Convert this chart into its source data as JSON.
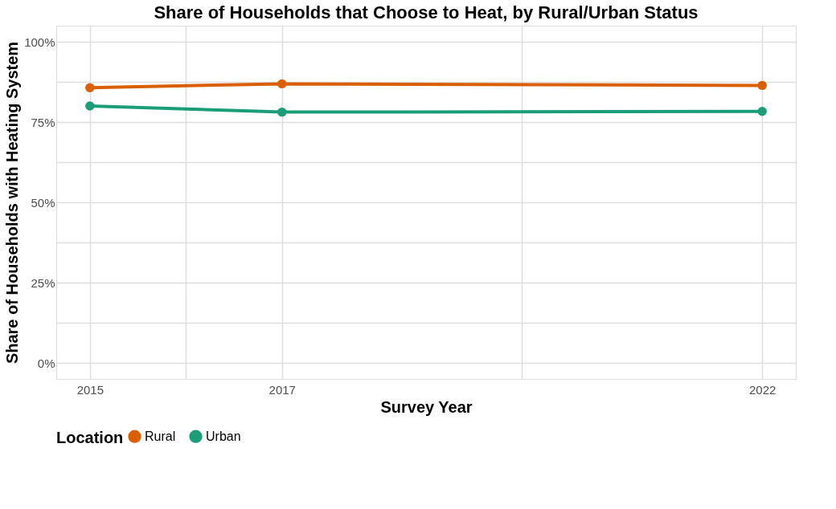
{
  "chart_data": {
    "type": "line",
    "title": "Share of Households that Choose to Heat, by Rural/Urban Status",
    "xlabel": "Survey Year",
    "ylabel": "Share of Households with Heating System",
    "legend_title": "Location",
    "x": [
      2015,
      2017,
      2022
    ],
    "series": [
      {
        "name": "Rural",
        "color": "#d95f02",
        "values": [
          85.7,
          86.9,
          86.4
        ]
      },
      {
        "name": "Urban",
        "color": "#1b9e77",
        "values": [
          80.0,
          78.1,
          78.3
        ]
      }
    ],
    "xlim": [
      2014.65,
      2022.35
    ],
    "xticks": [
      2015,
      {
        "value": 2016,
        "label": null
      },
      2017,
      {
        "value": 2019.5,
        "label": null
      },
      2022
    ],
    "ylim": [
      -5,
      105
    ],
    "yticks": [
      {
        "value": 0,
        "label": "0%"
      },
      {
        "value": 12.5,
        "label": null
      },
      {
        "value": 25,
        "label": "25%"
      },
      {
        "value": 37.5,
        "label": null
      },
      {
        "value": 50,
        "label": "50%"
      },
      {
        "value": 62.5,
        "label": null
      },
      {
        "value": 75,
        "label": "75%"
      },
      {
        "value": 87.5,
        "label": null
      },
      {
        "value": 100,
        "label": "100%"
      }
    ],
    "grid": true,
    "legend": "bottom",
    "marker": "circle",
    "line_style": "solid"
  }
}
